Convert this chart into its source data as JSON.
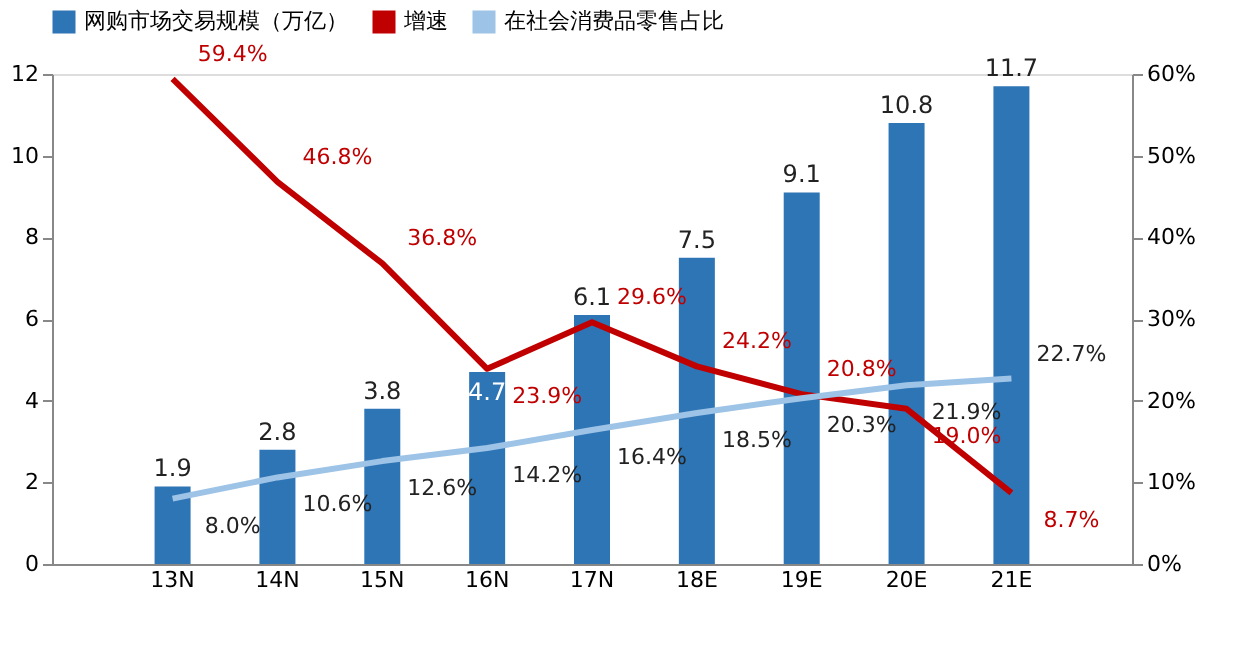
{
  "chart_data": {
    "type": "bar",
    "categories": [
      "13N",
      "14N",
      "15N",
      "16N",
      "17N",
      "18E",
      "19E",
      "20E",
      "21E"
    ],
    "series": [
      {
        "name": "网购市场交易规模（万亿）",
        "color": "#2e75b6",
        "values": [
          1.9,
          2.8,
          3.8,
          4.7,
          6.1,
          7.5,
          9.1,
          10.8,
          11.7
        ],
        "value_labels": [
          "1.9",
          "2.8",
          "3.8",
          "4.7",
          "6.1",
          "7.5",
          "9.1",
          "10.8",
          "11.7"
        ]
      },
      {
        "name": "增速",
        "type": "line",
        "axis": "y2",
        "color": "#c00000",
        "values": [
          59.4,
          46.8,
          36.8,
          23.9,
          29.6,
          24.2,
          20.8,
          19.0,
          8.7
        ],
        "value_labels": [
          "59.4%",
          "46.8%",
          "36.8%",
          "23.9%",
          "29.6%",
          "24.2%",
          "20.8%",
          "19.0%",
          "8.7%"
        ]
      },
      {
        "name": "在社会消费品零售占比",
        "type": "line",
        "axis": "y2",
        "color": "#9dc3e6",
        "values": [
          8.0,
          10.6,
          12.6,
          14.2,
          16.4,
          18.5,
          20.3,
          21.9,
          22.7
        ],
        "value_labels": [
          "8.0%",
          "10.6%",
          "12.6%",
          "14.2%",
          "16.4%",
          "18.5%",
          "20.3%",
          "21.9%",
          "22.7%"
        ]
      }
    ],
    "ylim": [
      0,
      12
    ],
    "yticks": [
      0,
      2,
      4,
      6,
      8,
      10,
      12
    ],
    "y2lim": [
      0,
      60
    ],
    "y2ticks": [
      {
        "value": 0,
        "label": "0%"
      },
      {
        "value": 10,
        "label": "10%"
      },
      {
        "value": 20,
        "label": "20%"
      },
      {
        "value": 30,
        "label": "30%"
      },
      {
        "value": 40,
        "label": "40%"
      },
      {
        "value": 50,
        "label": "50%"
      },
      {
        "value": 60,
        "label": "60%"
      }
    ],
    "grid": false,
    "legend": "top",
    "marker": "none",
    "line_style": "solid"
  }
}
